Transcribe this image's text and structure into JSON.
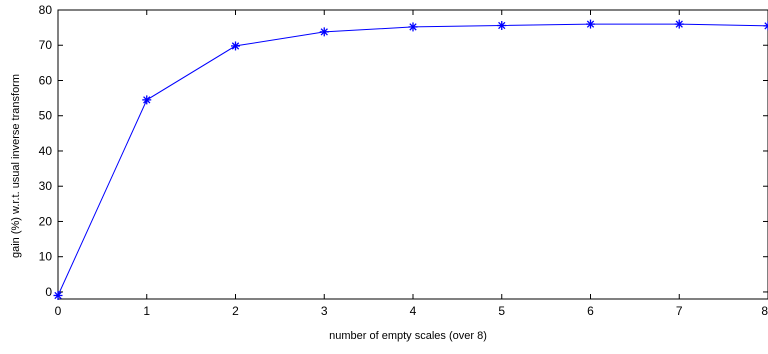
{
  "chart_data": {
    "type": "line",
    "title": "",
    "xlabel": "number of empty scales (over 8)",
    "ylabel": "gain (%) w.r.t. usual inverse transform",
    "xlim": [
      0,
      8
    ],
    "ylim": [
      -2,
      80
    ],
    "x_ticks": [
      0,
      1,
      2,
      3,
      4,
      5,
      6,
      7,
      8
    ],
    "y_ticks": [
      0,
      10,
      20,
      30,
      40,
      50,
      60,
      70,
      80
    ],
    "grid": false,
    "legend": "none",
    "series": [
      {
        "marker": "asterisk",
        "color": "#0000ff",
        "x": [
          0,
          1,
          2,
          3,
          4,
          5,
          6,
          7,
          8
        ],
        "y": [
          -1,
          54.5,
          69.8,
          73.8,
          75.2,
          75.6,
          76.0,
          76.0,
          75.5
        ]
      }
    ]
  }
}
